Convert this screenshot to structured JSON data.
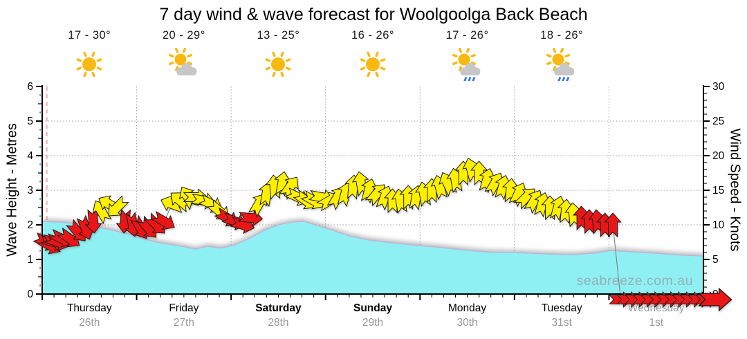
{
  "header": {
    "title": "7 day wind & wave forecast for Woolgoolga Back Beach"
  },
  "watermark": "seabreeze.com.au",
  "days": [
    {
      "name": "Thursday",
      "date": "26th",
      "temp": "17 - 30°",
      "icon": "sunny",
      "bold": false,
      "muted": false
    },
    {
      "name": "Friday",
      "date": "27th",
      "temp": "20 - 29°",
      "icon": "partly-cloudy",
      "bold": false,
      "muted": false
    },
    {
      "name": "Saturday",
      "date": "28th",
      "temp": "13 - 25°",
      "icon": "sunny",
      "bold": true,
      "muted": false
    },
    {
      "name": "Sunday",
      "date": "29th",
      "temp": "16 - 26°",
      "icon": "sunny",
      "bold": true,
      "muted": false
    },
    {
      "name": "Monday",
      "date": "30th",
      "temp": "17 - 26°",
      "icon": "rain-showers",
      "bold": false,
      "muted": false
    },
    {
      "name": "Tuesday",
      "date": "31st",
      "temp": "18 - 26°",
      "icon": "rain-showers",
      "bold": false,
      "muted": false
    },
    {
      "name": "Wednesday",
      "date": "1st",
      "temp": "",
      "icon": "",
      "bold": false,
      "muted": true
    }
  ],
  "chart_data": {
    "type": "area",
    "title": "7 day wind & wave forecast for Woolgoolga Back Beach",
    "left_axis": {
      "label": "Wave Height - Metres",
      "min": 0,
      "max": 6,
      "ticks": [
        0,
        1,
        2,
        3,
        4,
        5,
        6
      ]
    },
    "right_axis": {
      "label": "Wind Speed - Knots",
      "min": 0,
      "max": 30,
      "ticks": [
        0,
        5,
        10,
        15,
        20,
        25,
        30
      ]
    },
    "x_axis": {
      "total_hours": 168,
      "hours_per_day": 24,
      "minor_tick_hours": 3,
      "now_marker_hour": 1.2
    },
    "grid": {
      "horizontal_at_metres": [
        1,
        2,
        3,
        4,
        5
      ],
      "vertical_at_day_boundaries": true
    },
    "wave_height_m": [
      [
        0,
        2.1
      ],
      [
        6,
        2.07
      ],
      [
        11,
        2.0
      ],
      [
        16.5,
        1.88
      ],
      [
        21,
        1.76
      ],
      [
        24,
        1.66
      ],
      [
        29,
        1.5
      ],
      [
        34.5,
        1.4
      ],
      [
        39,
        1.3
      ],
      [
        42,
        1.38
      ],
      [
        45.5,
        1.33
      ],
      [
        49,
        1.42
      ],
      [
        53,
        1.63
      ],
      [
        56.5,
        1.85
      ],
      [
        60,
        2.0
      ],
      [
        63.5,
        2.08
      ],
      [
        66.5,
        2.1
      ],
      [
        70,
        1.98
      ],
      [
        73.5,
        1.85
      ],
      [
        78,
        1.68
      ],
      [
        83,
        1.56
      ],
      [
        89,
        1.48
      ],
      [
        96,
        1.4
      ],
      [
        103.5,
        1.32
      ],
      [
        109.5,
        1.25
      ],
      [
        114,
        1.21
      ],
      [
        120,
        1.2
      ],
      [
        128,
        1.16
      ],
      [
        135,
        1.14
      ],
      [
        140,
        1.18
      ],
      [
        144.5,
        1.26
      ],
      [
        150,
        1.22
      ],
      [
        157,
        1.17
      ],
      [
        163,
        1.12
      ],
      [
        168,
        1.1
      ]
    ],
    "wind_columns": [
      "hour",
      "knots",
      "dir_deg_pointing_toward_0_is_up",
      "strength_color"
    ],
    "wind": [
      [
        1,
        7.5,
        115,
        "r"
      ],
      [
        2,
        7,
        120,
        "r"
      ],
      [
        3,
        7.5,
        105,
        "r"
      ],
      [
        4,
        7.5,
        110,
        "r"
      ],
      [
        5,
        8,
        115,
        "r"
      ],
      [
        7,
        8,
        125,
        "r"
      ],
      [
        9,
        9,
        140,
        "r"
      ],
      [
        11,
        9.5,
        160,
        "r"
      ],
      [
        13,
        10.5,
        175,
        "r"
      ],
      [
        15,
        12,
        330,
        "y"
      ],
      [
        17,
        13,
        300,
        "y"
      ],
      [
        19,
        12.5,
        225,
        "y"
      ],
      [
        21,
        10.5,
        185,
        "r"
      ],
      [
        23,
        10,
        170,
        "r"
      ],
      [
        25,
        9.5,
        150,
        "r"
      ],
      [
        27,
        9.5,
        140,
        "r"
      ],
      [
        29,
        10,
        135,
        "r"
      ],
      [
        31,
        10.5,
        120,
        "r"
      ],
      [
        33,
        13,
        290,
        "y"
      ],
      [
        35,
        13.5,
        310,
        "y"
      ],
      [
        37,
        14,
        330,
        "y"
      ],
      [
        39,
        14,
        90,
        "y"
      ],
      [
        41,
        13.5,
        100,
        "y"
      ],
      [
        43,
        13,
        115,
        "y"
      ],
      [
        45,
        12,
        130,
        "y"
      ],
      [
        47,
        11,
        120,
        "r"
      ],
      [
        49,
        10.5,
        110,
        "r"
      ],
      [
        51,
        10,
        105,
        "r"
      ],
      [
        53,
        11,
        95,
        "r"
      ],
      [
        55,
        13,
        30,
        "y"
      ],
      [
        57,
        14.5,
        10,
        "y"
      ],
      [
        59,
        15.5,
        355,
        "y"
      ],
      [
        61,
        16,
        10,
        "y"
      ],
      [
        63,
        15.5,
        35,
        "y"
      ],
      [
        65,
        14,
        115,
        "y"
      ],
      [
        67,
        13.5,
        125,
        "y"
      ],
      [
        69,
        13.5,
        120,
        "y"
      ],
      [
        71,
        14,
        100,
        "y"
      ],
      [
        73,
        13.5,
        60,
        "y"
      ],
      [
        75,
        14,
        30,
        "y"
      ],
      [
        77,
        14.5,
        15,
        "y"
      ],
      [
        79,
        15.5,
        5,
        "y"
      ],
      [
        81,
        16,
        350,
        "y"
      ],
      [
        83,
        15,
        15,
        "y"
      ],
      [
        85,
        14.5,
        40,
        "y"
      ],
      [
        87,
        14,
        20,
        "y"
      ],
      [
        89,
        13.5,
        0,
        "y"
      ],
      [
        91,
        13.5,
        350,
        "y"
      ],
      [
        93,
        14,
        0,
        "y"
      ],
      [
        95,
        14,
        10,
        "y"
      ],
      [
        97,
        14.5,
        350,
        "y"
      ],
      [
        99,
        15,
        0,
        "y"
      ],
      [
        101,
        15.5,
        345,
        "y"
      ],
      [
        103,
        16,
        335,
        "y"
      ],
      [
        105,
        16.5,
        350,
        "y"
      ],
      [
        107,
        17.5,
        0,
        "y"
      ],
      [
        109,
        18,
        345,
        "y"
      ],
      [
        111,
        17.5,
        0,
        "y"
      ],
      [
        113,
        16.5,
        15,
        "y"
      ],
      [
        115,
        16,
        30,
        "y"
      ],
      [
        117,
        15.5,
        15,
        "y"
      ],
      [
        119,
        15,
        5,
        "y"
      ],
      [
        121,
        14.5,
        25,
        "y"
      ],
      [
        123,
        14,
        45,
        "y"
      ],
      [
        125,
        13.5,
        30,
        "y"
      ],
      [
        127,
        13,
        15,
        "y"
      ],
      [
        129,
        12.5,
        0,
        "y"
      ],
      [
        131,
        12.5,
        15,
        "y"
      ],
      [
        133,
        12,
        5,
        "y"
      ],
      [
        135,
        11.5,
        355,
        "y"
      ],
      [
        137,
        11,
        0,
        "r"
      ],
      [
        139,
        10.5,
        0,
        "r"
      ],
      [
        141,
        10.5,
        355,
        "r"
      ],
      [
        143,
        10,
        0,
        "r"
      ],
      [
        145,
        10,
        0,
        "r"
      ],
      [
        147,
        0,
        90,
        "r"
      ],
      [
        149,
        0,
        90,
        "r"
      ],
      [
        151,
        0,
        90,
        "r"
      ],
      [
        153,
        0,
        90,
        "r"
      ],
      [
        155,
        0,
        90,
        "r"
      ],
      [
        157,
        0,
        90,
        "r"
      ],
      [
        159,
        0,
        90,
        "r"
      ],
      [
        161,
        0,
        90,
        "r"
      ],
      [
        163,
        0,
        90,
        "r"
      ],
      [
        165,
        0,
        90,
        "r"
      ],
      [
        167,
        0,
        90,
        "r"
      ],
      [
        169,
        0,
        90,
        "r"
      ],
      [
        171,
        0,
        90,
        "r"
      ]
    ],
    "colors": {
      "wave_fill": "#8FF0F3",
      "wave_edge": "#BCB4DC",
      "arrow_light_wind": "#E81414",
      "arrow_strong_wind": "#FFF000",
      "arrow_outline": "#1a1a1a",
      "now_line": "#FF9D9D",
      "grid": "#9a9a9a",
      "date_text": "#999999",
      "watermark_text": "#93B1B7",
      "sun": "#F8BA11",
      "cloud": "#C7C7C7",
      "rain": "#2F74D8"
    }
  }
}
